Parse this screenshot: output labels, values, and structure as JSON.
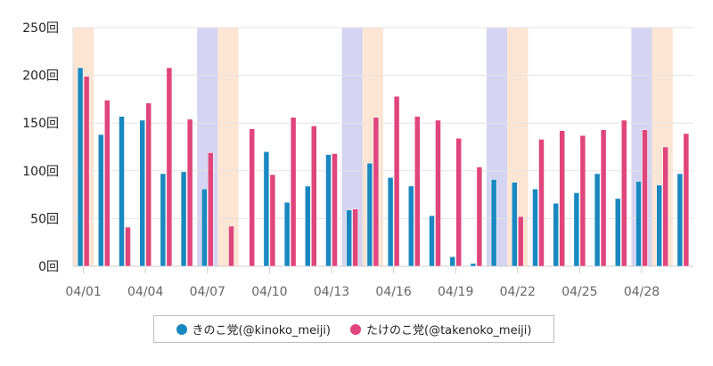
{
  "chart_data": {
    "type": "bar",
    "title": "",
    "xlabel": "",
    "ylabel": "",
    "ylim": [
      0,
      250
    ],
    "yticks": [
      0,
      50,
      100,
      150,
      200,
      250
    ],
    "ytick_suffix": "回",
    "grid": true,
    "legend_position": "bottom",
    "categories": [
      "04/01",
      "04/02",
      "04/03",
      "04/04",
      "04/05",
      "04/06",
      "04/07",
      "04/08",
      "04/09",
      "04/10",
      "04/11",
      "04/12",
      "04/13",
      "04/14",
      "04/15",
      "04/16",
      "04/17",
      "04/18",
      "04/19",
      "04/20",
      "04/21",
      "04/22",
      "04/23",
      "04/24",
      "04/25",
      "04/26",
      "04/27",
      "04/28",
      "04/29",
      "04/30"
    ],
    "xtick_labels": [
      "04/01",
      "04/04",
      "04/07",
      "04/10",
      "04/13",
      "04/16",
      "04/19",
      "04/22",
      "04/25",
      "04/28"
    ],
    "saturdays": [
      "04/07",
      "04/14",
      "04/21",
      "04/28"
    ],
    "sundays": [
      "04/01",
      "04/08",
      "04/15",
      "04/22",
      "04/29"
    ],
    "series": [
      {
        "name": "きのこ党(@kinoko_meiji)",
        "color": "#1a88c0",
        "values": [
          208,
          138,
          157,
          153,
          97,
          99,
          81,
          0,
          0,
          120,
          67,
          84,
          117,
          59,
          108,
          93,
          84,
          53,
          10,
          3,
          91,
          88,
          81,
          66,
          77,
          97,
          71,
          89,
          85,
          97
        ]
      },
      {
        "name": "たけのこ党(@takenoko_meiji)",
        "color": "#e0457b",
        "values": [
          199,
          174,
          41,
          171,
          208,
          154,
          119,
          42,
          144,
          96,
          156,
          147,
          118,
          60,
          156,
          178,
          157,
          153,
          134,
          104,
          0,
          52,
          133,
          142,
          137,
          143,
          153,
          143,
          125,
          139
        ]
      }
    ],
    "colors": {
      "saturday": "#d4d4f2",
      "sunday": "#fde5d3"
    }
  }
}
